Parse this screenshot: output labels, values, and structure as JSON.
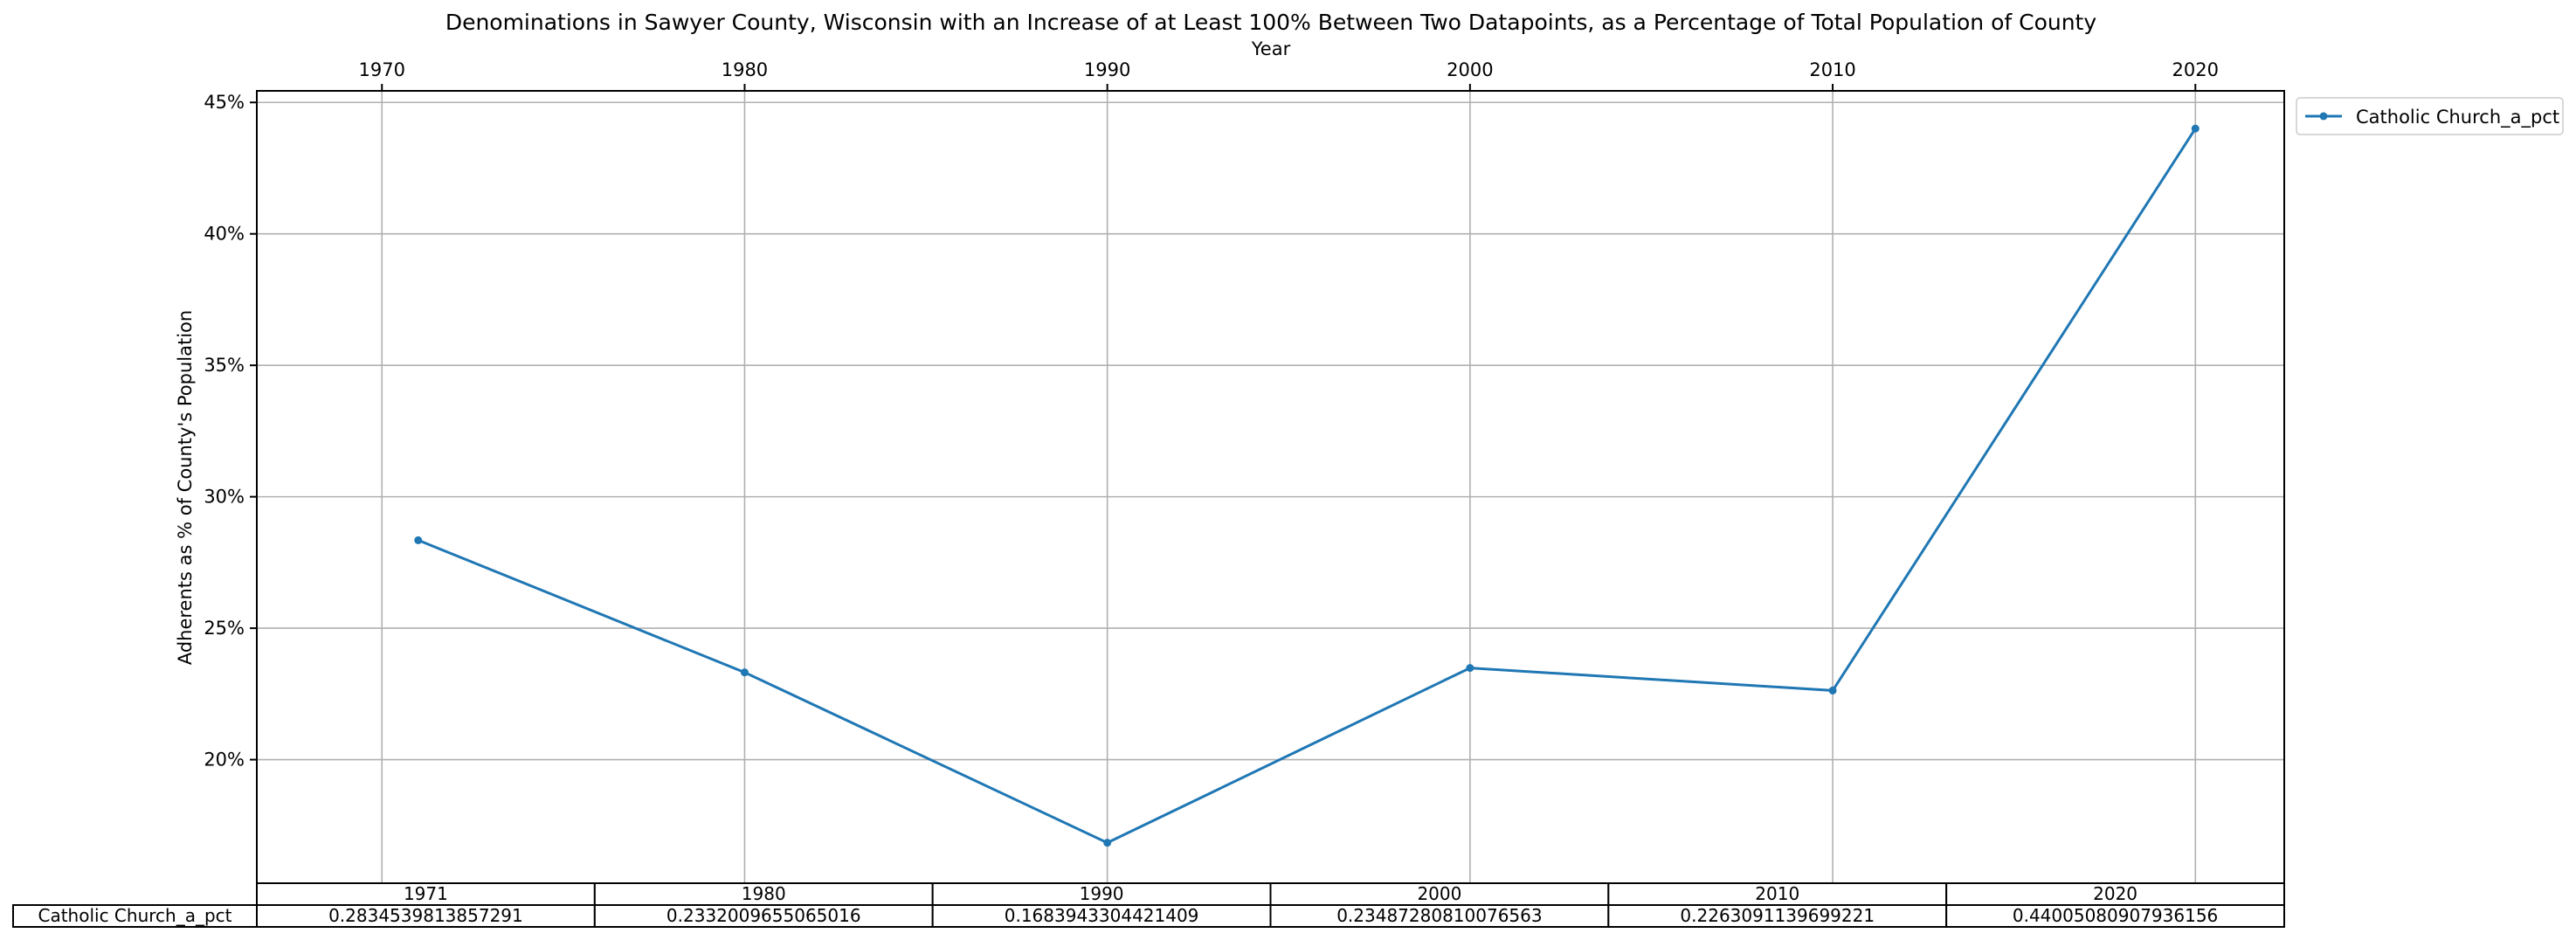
{
  "chart_data": {
    "type": "line",
    "title": "Denominations in Sawyer County, Wisconsin with an Increase of at Least 100% Between Two Datapoints, as a Percentage of Total Population of County",
    "xlabel": "Year",
    "ylabel": "Adherents as % of County's Population",
    "x": [
      1971,
      1980,
      1990,
      2000,
      2010,
      2020
    ],
    "x_ticks": [
      1970,
      1980,
      1990,
      2000,
      2010,
      2020
    ],
    "x_tick_labels": [
      "1970",
      "1980",
      "1990",
      "2000",
      "2010",
      "2020"
    ],
    "xlim": [
      1966.55,
      2022.45
    ],
    "ylim": [
      0.153,
      0.4544
    ],
    "y_ticks": [
      0.2,
      0.25,
      0.3,
      0.35,
      0.4,
      0.45
    ],
    "y_tick_labels": [
      "20%",
      "25%",
      "30%",
      "35%",
      "40%",
      "45%"
    ],
    "x_axis_position": "top",
    "grid": true,
    "legend_position": "outside-top-right",
    "colors": {
      "series": "#1f77b4"
    },
    "series": [
      {
        "name": "Catholic Church_a_pct",
        "values": [
          0.2834539813857291,
          0.2332009655065016,
          0.1683943304421409,
          0.2348728081007656,
          0.2263091139699221,
          0.44005080907936156
        ]
      }
    ],
    "table": {
      "columns": [
        "1971",
        "1980",
        "1990",
        "2000",
        "2010",
        "2020"
      ],
      "rows": [
        {
          "label": "Catholic Church_a_pct",
          "cells": [
            "0.2834539813857291",
            "0.2332009655065016",
            "0.1683943304421409",
            "0.23487280810076563",
            "0.2263091139699221",
            "0.44005080907936156"
          ]
        }
      ]
    }
  }
}
